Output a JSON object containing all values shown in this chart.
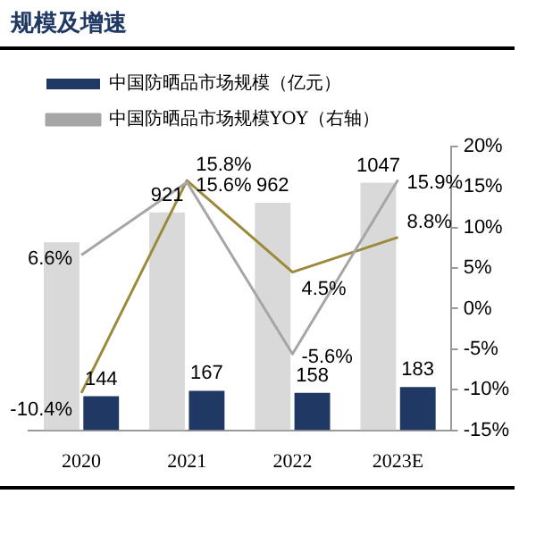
{
  "chart_data": {
    "type": "bar",
    "title": "规模及增速",
    "categories": [
      "2020",
      "2021",
      "2022",
      "2023E"
    ],
    "series": [
      {
        "color": "#d9d9d9",
        "values": [
          795,
          921,
          962,
          1047
        ],
        "value_labels": [
          null,
          "921",
          "962",
          "1047"
        ]
      },
      {
        "name": "中国防晒品市场规模（亿元）",
        "color": "#1f3864",
        "values": [
          144,
          167,
          158,
          183
        ],
        "value_labels": [
          "144",
          "167",
          "158",
          "183"
        ]
      },
      {
        "type": "line",
        "name": "中国防晒品市场规模YOY（右轴）",
        "color": "#a6a6a6",
        "axis": "y2",
        "values": [
          6.6,
          15.6,
          -5.6,
          15.9
        ],
        "value_labels": [
          "6.6%",
          "15.6%",
          "-5.6%",
          "15.9%"
        ]
      },
      {
        "type": "line",
        "color": "#9c8a3c",
        "axis": "y2",
        "values": [
          -10.4,
          15.8,
          4.5,
          8.8
        ],
        "value_labels": [
          "-10.4%",
          "15.8%",
          "4.5%",
          "8.8%"
        ]
      }
    ],
    "ylim": [
      0,
      1200
    ],
    "y2lim": [
      -15,
      20
    ],
    "y2ticks": [
      {
        "value": -15,
        "label": "-15%"
      },
      {
        "value": -10,
        "label": "-10%"
      },
      {
        "value": -5,
        "label": "-5%"
      },
      {
        "value": 0,
        "label": "0%"
      },
      {
        "value": 5,
        "label": "5%"
      },
      {
        "value": 10,
        "label": "10%"
      },
      {
        "value": 15,
        "label": "15%"
      },
      {
        "value": 20,
        "label": "20%"
      }
    ],
    "tick_labels": "x",
    "legend": "top left",
    "grid": false,
    "marker": "none"
  }
}
